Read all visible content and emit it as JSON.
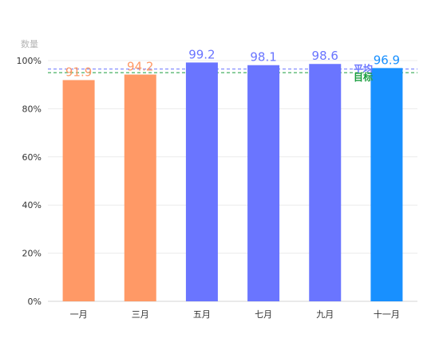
{
  "chart_data": {
    "type": "bar",
    "y_unit_label": "数量",
    "categories": [
      "一月",
      "三月",
      "五月",
      "七月",
      "九月",
      "十一月"
    ],
    "values": [
      91.9,
      94.2,
      99.2,
      98.1,
      98.6,
      96.9
    ],
    "value_labels": [
      "91.9",
      "94.2",
      "99.2",
      "98.1",
      "98.6",
      "96.9"
    ],
    "bar_colors": [
      "#FF9966",
      "#FF9966",
      "#6A75FF",
      "#6A75FF",
      "#6A75FF",
      "#1890FF"
    ],
    "label_colors": [
      "#FF9966",
      "#FF9966",
      "#6A75FF",
      "#6A75FF",
      "#6A75FF",
      "#1890FF"
    ],
    "ylim": [
      0,
      100
    ],
    "y_ticks": [
      0,
      20,
      40,
      60,
      80,
      100
    ],
    "y_tick_labels": [
      "0%",
      "20%",
      "40%",
      "60%",
      "80%",
      "100%"
    ],
    "reference_lines": [
      {
        "name": "平均",
        "value": 96.5,
        "color": "#6A75FF",
        "style": "dashed"
      },
      {
        "name": "目标",
        "value": 95,
        "color": "#1A9E3F",
        "style": "dashed"
      }
    ],
    "grid": true,
    "legend": "none",
    "title": "",
    "xlabel": "",
    "ylabel": ""
  }
}
